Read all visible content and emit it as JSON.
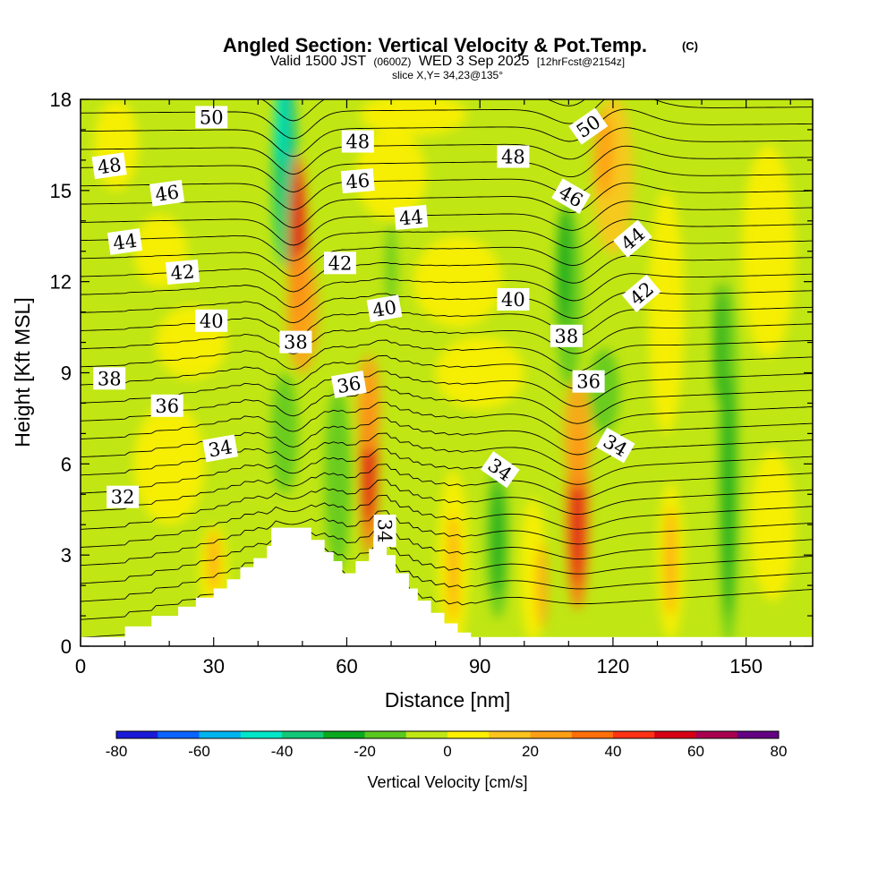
{
  "title": {
    "main": "Angled Section: Vertical Velocity & Pot.Temp.",
    "copyright": "(C)",
    "valid_prefix": "Valid 1500 JST",
    "valid_z": "(0600Z)",
    "valid_date": "WED 3 Sep 2025",
    "forecast": "[12hrFcst@2154z]",
    "slice": "slice X,Y= 34,23@135°"
  },
  "chart_data": {
    "type": "heatmap",
    "xlabel": "Distance [nm]",
    "ylabel": "Height [Kft MSL]",
    "xlim": [
      0,
      165
    ],
    "ylim": [
      0,
      18
    ],
    "xticks": [
      0,
      30,
      60,
      90,
      120,
      150
    ],
    "yticks": [
      0,
      3,
      6,
      9,
      12,
      15,
      18
    ],
    "grid": false,
    "colorbar": {
      "label": "Vertical Velocity [cm/s]",
      "range": [
        -80,
        80
      ],
      "ticks": [
        -80,
        -60,
        -40,
        -20,
        0,
        20,
        40,
        60,
        80
      ],
      "colors": [
        "#1a1ad8",
        "#0a64ff",
        "#00b4f0",
        "#00e6c8",
        "#12c878",
        "#0aa91e",
        "#5ac81e",
        "#c0e614",
        "#fff000",
        "#ffc31e",
        "#ffa014",
        "#ff6e0a",
        "#ff3214",
        "#d70014",
        "#aa0050",
        "#640082"
      ]
    },
    "terrain": [
      [
        0,
        0.3
      ],
      [
        10,
        0.3
      ],
      [
        10,
        0.65
      ],
      [
        16,
        0.65
      ],
      [
        16,
        1.0
      ],
      [
        22,
        1.0
      ],
      [
        22,
        1.3
      ],
      [
        26,
        1.3
      ],
      [
        26,
        1.6
      ],
      [
        30,
        1.6
      ],
      [
        30,
        1.9
      ],
      [
        33,
        1.9
      ],
      [
        33,
        2.2
      ],
      [
        36,
        2.2
      ],
      [
        36,
        2.6
      ],
      [
        39,
        2.6
      ],
      [
        39,
        2.9
      ],
      [
        42,
        2.9
      ],
      [
        42,
        3.3
      ],
      [
        43,
        3.3
      ],
      [
        43,
        3.9
      ],
      [
        52,
        3.9
      ],
      [
        52,
        3.5
      ],
      [
        55,
        3.5
      ],
      [
        55,
        3.1
      ],
      [
        57,
        3.1
      ],
      [
        57,
        2.8
      ],
      [
        59,
        2.8
      ],
      [
        59,
        2.4
      ],
      [
        62,
        2.4
      ],
      [
        62,
        2.8
      ],
      [
        65,
        2.8
      ],
      [
        65,
        3.2
      ],
      [
        66,
        3.2
      ],
      [
        66,
        3.6
      ],
      [
        69,
        3.6
      ],
      [
        69,
        3.0
      ],
      [
        71,
        3.0
      ],
      [
        71,
        2.4
      ],
      [
        74,
        2.4
      ],
      [
        74,
        1.9
      ],
      [
        76,
        1.9
      ],
      [
        76,
        1.5
      ],
      [
        79,
        1.5
      ],
      [
        79,
        1.1
      ],
      [
        82,
        1.1
      ],
      [
        82,
        0.75
      ],
      [
        85,
        0.75
      ],
      [
        85,
        0.45
      ],
      [
        88,
        0.45
      ],
      [
        88,
        0.3
      ],
      [
        165,
        0.3
      ]
    ],
    "theta_isentropes": [
      {
        "base": 0.15,
        "spacing": 0.6,
        "count": 31
      }
    ],
    "contour_labels": [
      {
        "text": "50",
        "x": 29.5,
        "y": 17.4,
        "rot": 0
      },
      {
        "text": "48",
        "x": 6.5,
        "y": 15.8,
        "rot": -8
      },
      {
        "text": "46",
        "x": 19.5,
        "y": 14.9,
        "rot": -8
      },
      {
        "text": "44",
        "x": 10,
        "y": 13.3,
        "rot": -8
      },
      {
        "text": "42",
        "x": 23,
        "y": 12.3,
        "rot": -5
      },
      {
        "text": "40",
        "x": 29.5,
        "y": 10.7,
        "rot": 0
      },
      {
        "text": "38",
        "x": 6.5,
        "y": 8.8,
        "rot": 0
      },
      {
        "text": "36",
        "x": 19.5,
        "y": 7.9,
        "rot": 0
      },
      {
        "text": "34",
        "x": 31.5,
        "y": 6.5,
        "rot": -10
      },
      {
        "text": "32",
        "x": 9.5,
        "y": 4.9,
        "rot": 0
      },
      {
        "text": "48",
        "x": 62.5,
        "y": 16.6,
        "rot": 0
      },
      {
        "text": "46",
        "x": 62.5,
        "y": 15.3,
        "rot": -5
      },
      {
        "text": "44",
        "x": 74.5,
        "y": 14.1,
        "rot": -5
      },
      {
        "text": "42",
        "x": 58.5,
        "y": 12.6,
        "rot": 0
      },
      {
        "text": "40",
        "x": 68.5,
        "y": 11.1,
        "rot": -10
      },
      {
        "text": "38",
        "x": 48.5,
        "y": 10.0,
        "rot": 0
      },
      {
        "text": "36",
        "x": 60.5,
        "y": 8.6,
        "rot": -10
      },
      {
        "text": "34",
        "x": 68.5,
        "y": 3.8,
        "rot": 90
      },
      {
        "text": "34",
        "x": 94.5,
        "y": 5.8,
        "rot": 35
      },
      {
        "text": "48",
        "x": 97.5,
        "y": 16.1,
        "rot": 0
      },
      {
        "text": "40",
        "x": 97.5,
        "y": 11.4,
        "rot": 0
      },
      {
        "text": "50",
        "x": 114.5,
        "y": 17.1,
        "rot": -35
      },
      {
        "text": "46",
        "x": 110.5,
        "y": 14.8,
        "rot": 30
      },
      {
        "text": "44",
        "x": 124.5,
        "y": 13.4,
        "rot": -40
      },
      {
        "text": "42",
        "x": 126.5,
        "y": 11.6,
        "rot": -40
      },
      {
        "text": "38",
        "x": 109.5,
        "y": 10.2,
        "rot": 0
      },
      {
        "text": "36",
        "x": 114.5,
        "y": 8.7,
        "rot": 0
      },
      {
        "text": "34",
        "x": 120.5,
        "y": 6.6,
        "rot": 30
      }
    ]
  }
}
